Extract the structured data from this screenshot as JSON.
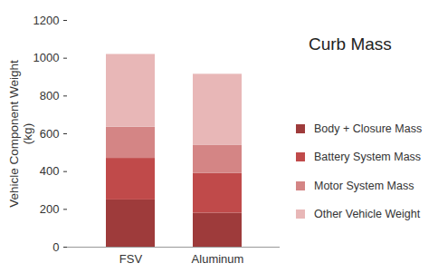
{
  "chart_data": {
    "type": "bar",
    "stacked": true,
    "title": "Curb Mass",
    "y_label": "Vehicle Component Weight (kg)",
    "categories": [
      "FSV",
      "Aluminum"
    ],
    "series": [
      {
        "name": "Body + Closure Mass",
        "color": "#9e3b3b",
        "values": [
          250,
          180
        ]
      },
      {
        "name": "Battery System Mass",
        "color": "#c04a4a",
        "values": [
          220,
          210
        ]
      },
      {
        "name": "Motor System Mass",
        "color": "#d48585",
        "values": [
          165,
          150
        ]
      },
      {
        "name": "Other Vehicle Weight",
        "color": "#e8b7b7",
        "values": [
          385,
          375
        ]
      }
    ],
    "ylim": [
      0,
      1200
    ],
    "yticks": [
      0,
      200,
      400,
      600,
      800,
      1000,
      1200
    ],
    "grid": false,
    "legend": "right"
  }
}
